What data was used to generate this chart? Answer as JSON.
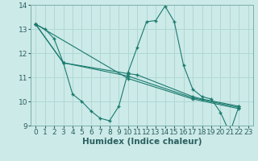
{
  "xlabel": "Humidex (Indice chaleur)",
  "xlim": [
    -0.5,
    23.5
  ],
  "ylim": [
    9,
    14
  ],
  "yticks": [
    9,
    10,
    11,
    12,
    13,
    14
  ],
  "xticks": [
    0,
    1,
    2,
    3,
    4,
    5,
    6,
    7,
    8,
    9,
    10,
    11,
    12,
    13,
    14,
    15,
    16,
    17,
    18,
    19,
    20,
    21,
    22,
    23
  ],
  "bg_color": "#cceae8",
  "grid_color": "#b0d8d4",
  "line_color": "#1a7a6e",
  "series": [
    {
      "x": [
        0,
        1,
        2,
        3,
        4,
        5,
        6,
        7,
        8,
        9,
        10,
        11,
        12,
        13,
        14,
        15,
        16,
        17,
        18,
        19,
        20,
        21,
        22
      ],
      "y": [
        13.2,
        13.0,
        12.6,
        11.6,
        10.3,
        10.0,
        9.6,
        9.3,
        9.2,
        9.8,
        11.2,
        12.25,
        13.3,
        13.35,
        13.95,
        13.3,
        11.5,
        10.5,
        10.2,
        10.1,
        9.55,
        8.7,
        9.8
      ]
    },
    {
      "x": [
        0,
        3,
        10,
        11,
        17,
        18,
        22
      ],
      "y": [
        13.2,
        11.6,
        11.15,
        11.1,
        10.2,
        10.1,
        9.8
      ]
    },
    {
      "x": [
        0,
        3,
        10,
        17,
        22
      ],
      "y": [
        13.2,
        11.6,
        11.05,
        10.15,
        9.75
      ]
    },
    {
      "x": [
        0,
        10,
        17,
        22
      ],
      "y": [
        13.2,
        10.95,
        10.1,
        9.7
      ]
    }
  ],
  "font_color": "#2a6060",
  "tick_fontsize": 6.5,
  "label_fontsize": 7.5
}
